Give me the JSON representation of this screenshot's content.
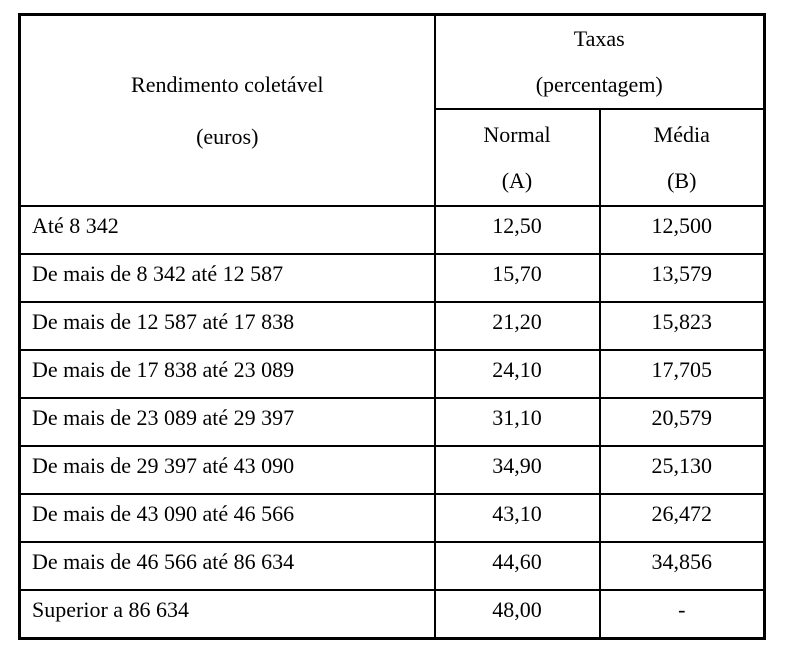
{
  "table": {
    "header": {
      "income": {
        "line1": "Rendimento coletável",
        "line2": "(euros)"
      },
      "rates": {
        "line1": "Taxas",
        "line2": "(percentagem)"
      },
      "normal": {
        "line1": "Normal",
        "line2": "(A)"
      },
      "average": {
        "line1": "Média",
        "line2": "(B)"
      }
    },
    "rows": [
      {
        "income": "Até 8 342",
        "normal": "12,50",
        "average": "12,500"
      },
      {
        "income": "De mais de 8 342 até 12 587",
        "normal": "15,70",
        "average": "13,579"
      },
      {
        "income": "De mais de 12 587 até 17 838",
        "normal": "21,20",
        "average": "15,823"
      },
      {
        "income": "De mais de 17 838 até 23 089",
        "normal": "24,10",
        "average": "17,705"
      },
      {
        "income": "De mais de 23 089 até 29 397",
        "normal": "31,10",
        "average": "20,579"
      },
      {
        "income": "De mais de 29 397 até 43 090",
        "normal": "34,90",
        "average": "25,130"
      },
      {
        "income": "De mais de 43 090 até 46 566",
        "normal": "43,10",
        "average": "26,472"
      },
      {
        "income": "De mais de 46 566 até 86 634",
        "normal": "44,60",
        "average": "34,856"
      },
      {
        "income": "Superior a 86 634",
        "normal": "48,00",
        "average": "-"
      }
    ],
    "colors": {
      "border": "#000000",
      "text": "#000000",
      "background": "#ffffff"
    }
  }
}
